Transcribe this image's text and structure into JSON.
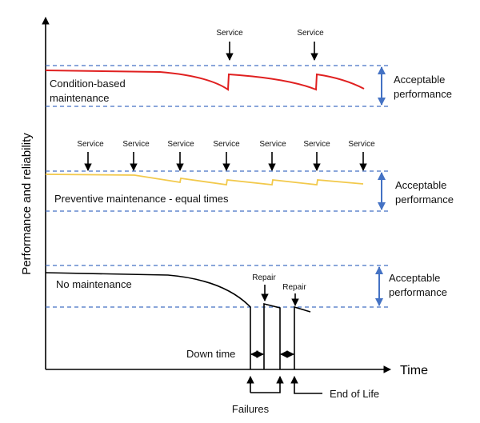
{
  "axes": {
    "y_label": "Performance and reliability",
    "x_label": "Time"
  },
  "colors": {
    "condition": "#e02020",
    "preventive": "#f2c94c",
    "none": "#000000",
    "band": "#4472c4"
  },
  "condition": {
    "label_1": "Condition-based",
    "label_2": "maintenance",
    "service": "Service",
    "band_1": "Acceptable",
    "band_2": "performance"
  },
  "preventive": {
    "label": "Preventive maintenance - equal times",
    "service": "Service",
    "band_1": "Acceptable",
    "band_2": "performance"
  },
  "none": {
    "label": "No maintenance",
    "repair": "Repair",
    "band_1": "Acceptable",
    "band_2": "performance",
    "down_time": "Down time",
    "failures": "Failures",
    "end_of_life": "End of Life"
  }
}
